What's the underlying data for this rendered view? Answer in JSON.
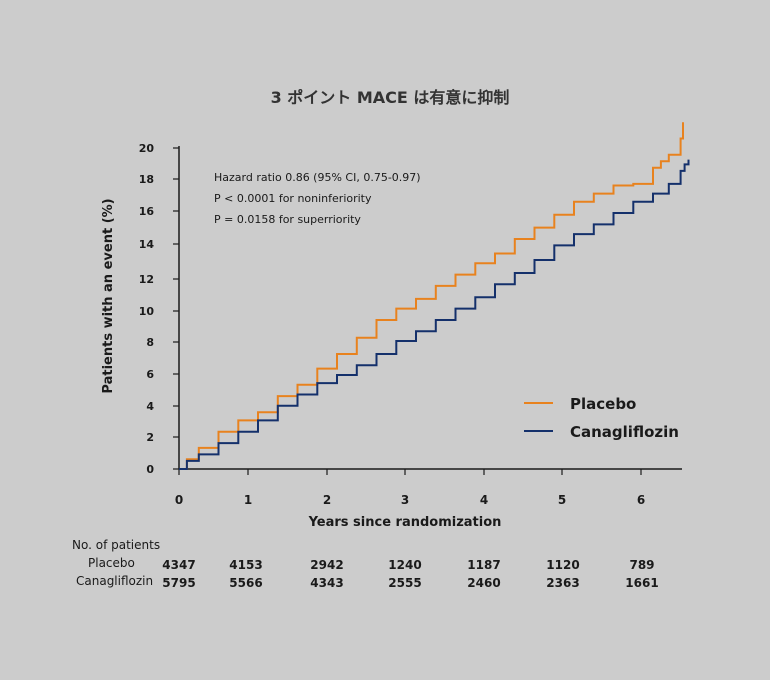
{
  "chart_data": {
    "type": "line",
    "title": "3 ポイント MACE は有意に抑制",
    "xlabel": "Years since randomization",
    "ylabel": "Patients with an event (%)",
    "xlim": [
      0,
      6.5
    ],
    "ylim": [
      0,
      20
    ],
    "x_ticks": [
      "0",
      "1",
      "2",
      "3",
      "4",
      "5",
      "6"
    ],
    "y_ticks": [
      "0",
      "2",
      "4",
      "6",
      "8",
      "10",
      "12",
      "14",
      "16",
      "18",
      "20"
    ],
    "legend_position": "right",
    "annotations": [
      "Hazard ratio 0.86 (95% CI, 0.75-0.97)",
      "P < 0.0001 for noninferiority",
      "P = 0.0158 for superriority"
    ],
    "series": [
      {
        "name": "Placebo",
        "color": "#e8821e",
        "x": [
          0,
          0.1,
          0.25,
          0.5,
          0.75,
          1.0,
          1.25,
          1.5,
          1.75,
          2.0,
          2.25,
          2.5,
          2.75,
          3.0,
          3.25,
          3.5,
          3.75,
          4.0,
          4.25,
          4.5,
          4.75,
          5.0,
          5.25,
          5.5,
          5.75,
          6.0,
          6.1,
          6.2,
          6.3,
          6.35,
          6.38
        ],
        "y": [
          0,
          0.6,
          1.3,
          2.3,
          3.0,
          3.5,
          4.5,
          5.2,
          6.2,
          7.1,
          8.1,
          9.2,
          9.9,
          10.5,
          11.3,
          12.0,
          12.7,
          13.3,
          14.2,
          14.9,
          15.7,
          16.5,
          17.0,
          17.5,
          17.6,
          18.6,
          19.0,
          19.4,
          19.4,
          20.4,
          21.4
        ]
      },
      {
        "name": "Canagliflozin",
        "color": "#14306b",
        "x": [
          0,
          0.1,
          0.25,
          0.5,
          0.75,
          1.0,
          1.25,
          1.5,
          1.75,
          2.0,
          2.25,
          2.5,
          2.75,
          3.0,
          3.25,
          3.5,
          3.75,
          4.0,
          4.25,
          4.5,
          4.75,
          5.0,
          5.25,
          5.5,
          5.75,
          6.0,
          6.2,
          6.35,
          6.4,
          6.45
        ],
        "y": [
          0,
          0.5,
          0.9,
          1.6,
          2.3,
          3.0,
          3.9,
          4.6,
          5.3,
          5.8,
          6.4,
          7.1,
          7.9,
          8.5,
          9.2,
          9.9,
          10.6,
          11.4,
          12.1,
          12.9,
          13.8,
          14.5,
          15.1,
          15.8,
          16.5,
          17.0,
          17.6,
          18.4,
          18.8,
          19.1
        ]
      }
    ]
  },
  "risk_table": {
    "header": "No. of patients",
    "rows": [
      {
        "label": "Placebo",
        "values": [
          "4347",
          "4153",
          "2942",
          "1240",
          "1187",
          "1120",
          "789"
        ]
      },
      {
        "label": "Canagliflozin",
        "values": [
          "5795",
          "5566",
          "4343",
          "2555",
          "2460",
          "2363",
          "1661"
        ]
      }
    ]
  }
}
